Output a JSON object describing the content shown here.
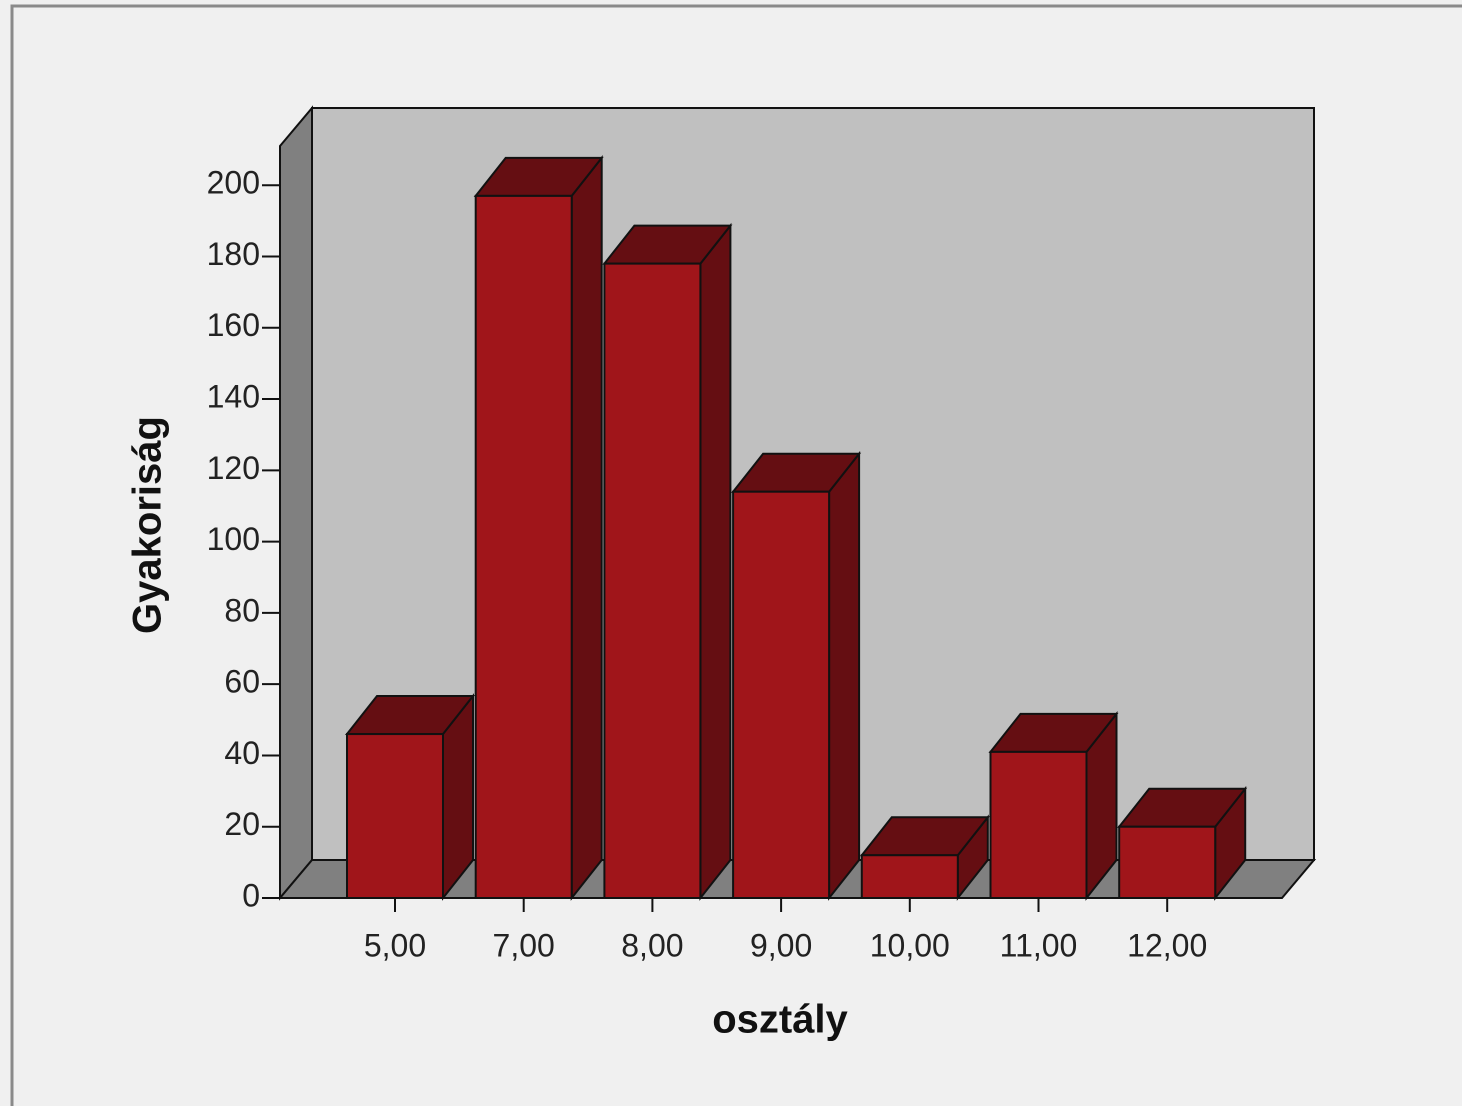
{
  "chart_data": {
    "type": "bar3d",
    "x_label": "osztály",
    "y_label": "Gyakoriság",
    "categories": [
      "5,00",
      "7,00",
      "8,00",
      "9,00",
      "10,00",
      "11,00",
      "12,00"
    ],
    "values": [
      46,
      197,
      178,
      114,
      12,
      41,
      20
    ],
    "color": "#a0151a",
    "ylim": [
      0,
      211
    ],
    "yticks": [
      0,
      20,
      40,
      60,
      80,
      100,
      120,
      140,
      160,
      180,
      200
    ],
    "grid": false
  }
}
